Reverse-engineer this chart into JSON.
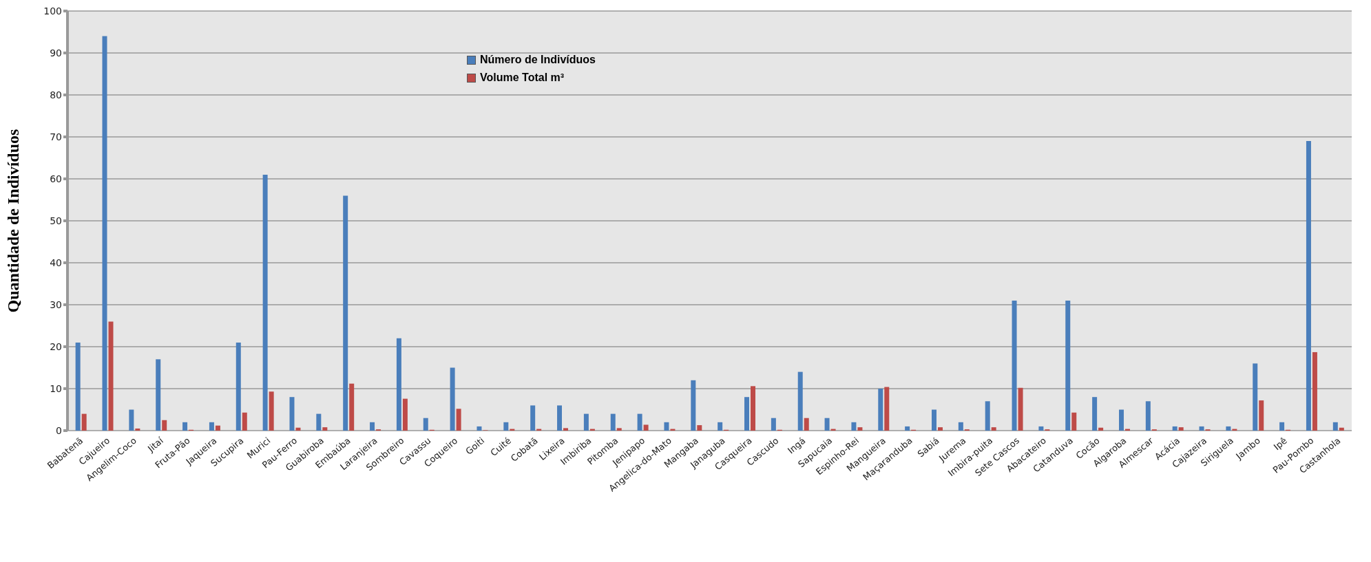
{
  "chart_data": {
    "type": "bar",
    "ylabel": "Quantidade de Indivíduos",
    "categories": [
      "Babatenã",
      "Cajueiro",
      "Angelim-Coco",
      "Jitaí",
      "Fruta-Pão",
      "Jaqueira",
      "Sucupira",
      "Murici",
      "Pau-Ferro",
      "Guabiroba",
      "Embaúba",
      "Laranjeira",
      "Sombreiro",
      "Cavassu",
      "Coqueiro",
      "Goiti",
      "Cuité",
      "Cobatã",
      "Lixeira",
      "Imbiriba",
      "Pitomba",
      "Jenipapo",
      "Angelica-do-Mato",
      "Mangaba",
      "Janaguba",
      "Casqueira",
      "Cascudo",
      "Ingá",
      "Sapucaia",
      "Espinho-Rei",
      "Mangueira",
      "Maçaranduba",
      "Sabiá",
      "Jurema",
      "Imbira-puita",
      "Sete Cascos",
      "Abacateiro",
      "Catanduva",
      "Cocão",
      "Algaroba",
      "Almescar",
      "Acácia",
      "Cajazeira",
      "Siriguela",
      "Jambo",
      "Ipê",
      "Pau-Pombo",
      "Castanhola"
    ],
    "series": [
      {
        "name": "Número de Indivíduos",
        "color": "#4a7ebb",
        "values": [
          21,
          94,
          5,
          17,
          2,
          2,
          21,
          61,
          8,
          4,
          56,
          2,
          22,
          3,
          15,
          1,
          2,
          6,
          6,
          4,
          4,
          4,
          2,
          12,
          2,
          8,
          3,
          14,
          3,
          2,
          10,
          1,
          5,
          2,
          7,
          31,
          1,
          31,
          8,
          5,
          7,
          1,
          1,
          1,
          16,
          2,
          69,
          2
        ]
      },
      {
        "name": "Volume Total m³",
        "color": "#be4b48",
        "values": [
          4,
          26,
          0.5,
          2.5,
          0.2,
          1.2,
          4.3,
          9.3,
          0.7,
          0.8,
          11.2,
          0.3,
          7.6,
          0.2,
          5.2,
          0.1,
          0.4,
          0.4,
          0.6,
          0.4,
          0.6,
          1.4,
          0.4,
          1.3,
          0.2,
          10.6,
          0.2,
          3,
          0.4,
          0.8,
          10.4,
          0.2,
          0.8,
          0.3,
          0.8,
          10.2,
          0.3,
          4.3,
          0.7,
          0.4,
          0.3,
          0.8,
          0.3,
          0.4,
          7.2,
          0.2,
          18.7,
          0.7
        ]
      }
    ],
    "ylim": [
      0,
      100
    ],
    "yticks": [
      0,
      10,
      20,
      30,
      40,
      50,
      60,
      70,
      80,
      90,
      100
    ],
    "grid": "y",
    "legend": "top"
  }
}
